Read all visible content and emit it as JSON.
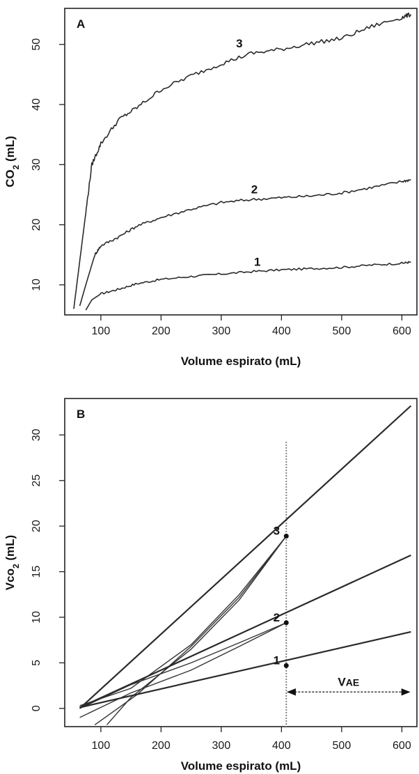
{
  "chart_data": [
    {
      "type": "line",
      "panel": "A",
      "xlabel": "Volume espirato (mL)",
      "ylabel": "CO",
      "ylabel_sub": "2",
      "ylabel_unit": " (mL)",
      "xlim": [
        40,
        625
      ],
      "ylim": [
        5,
        56
      ],
      "xticks": [
        100,
        200,
        300,
        400,
        500,
        600
      ],
      "yticks": [
        10,
        20,
        30,
        40,
        50
      ],
      "grid": false,
      "series": [
        {
          "label": "1",
          "x": [
            75,
            85,
            100,
            130,
            160,
            200,
            250,
            300,
            350,
            400,
            450,
            500,
            550,
            600,
            615
          ],
          "y": [
            5.8,
            7.5,
            8.5,
            9.3,
            10.2,
            10.9,
            11.4,
            11.8,
            12.2,
            12.5,
            12.7,
            12.9,
            13.3,
            13.6,
            13.8
          ]
        },
        {
          "label": "2",
          "x": [
            65,
            75,
            90,
            100,
            130,
            160,
            200,
            250,
            300,
            350,
            400,
            450,
            500,
            550,
            600,
            615
          ],
          "y": [
            6.5,
            10,
            15,
            16.5,
            18,
            19.8,
            21.2,
            22.6,
            23.7,
            24.2,
            24.5,
            24.8,
            25.3,
            26.2,
            27.2,
            27.5
          ]
        },
        {
          "label": "3",
          "x": [
            55,
            65,
            75,
            85,
            100,
            130,
            160,
            200,
            250,
            300,
            350,
            400,
            450,
            500,
            550,
            600,
            615
          ],
          "y": [
            6,
            14,
            22,
            30,
            33.5,
            37.5,
            39.5,
            42.5,
            44.8,
            46.8,
            48.5,
            49.2,
            50.2,
            51,
            53,
            54.5,
            55
          ]
        }
      ],
      "curve_labels": [
        {
          "text": "1",
          "x": 360,
          "y": 13.2
        },
        {
          "text": "2",
          "x": 355,
          "y": 25.2
        },
        {
          "text": "3",
          "x": 330,
          "y": 49.5
        }
      ]
    },
    {
      "type": "line",
      "panel": "B",
      "xlabel": "Volume espirato (mL)",
      "ylabel": "Vco",
      "ylabel_sub": "2",
      "ylabel_unit": " (mL)",
      "xlim": [
        40,
        625
      ],
      "ylim": [
        -2,
        34
      ],
      "xticks": [
        100,
        200,
        300,
        400,
        500,
        600
      ],
      "yticks": [
        0,
        5,
        10,
        15,
        20,
        25,
        30
      ],
      "grid": false,
      "series": [
        {
          "label": "1",
          "x": [
            65,
            615
          ],
          "y": [
            0.1,
            8.4
          ]
        },
        {
          "label": "2",
          "x": [
            65,
            615
          ],
          "y": [
            0.1,
            16.8
          ]
        },
        {
          "label": "3",
          "x": [
            65,
            615
          ],
          "y": [
            0.0,
            33.2
          ]
        }
      ],
      "extra_lines": [
        {
          "x": [
            65,
            150,
            250,
            330,
            408
          ],
          "y": [
            0.3,
            2.2,
            7.0,
            12.5,
            18.9
          ]
        },
        {
          "x": [
            90,
            160,
            250,
            330,
            408
          ],
          "y": [
            -1.8,
            1.5,
            6.8,
            12.2,
            18.9
          ]
        },
        {
          "x": [
            110,
            150,
            250,
            330,
            408
          ],
          "y": [
            -1.8,
            1.2,
            6.5,
            11.9,
            18.9
          ]
        },
        {
          "x": [
            65,
            150,
            250,
            330,
            408
          ],
          "y": [
            0.0,
            2.6,
            5.0,
            7.2,
            9.4
          ]
        },
        {
          "x": [
            65,
            150,
            250,
            330,
            408
          ],
          "y": [
            -1.0,
            1.7,
            4.2,
            6.8,
            9.4
          ]
        }
      ],
      "vline_x": 408,
      "points": [
        {
          "label": "1",
          "x": 408,
          "y": 4.7
        },
        {
          "label": "2",
          "x": 408,
          "y": 9.4
        },
        {
          "label": "3",
          "x": 408,
          "y": 18.9
        }
      ],
      "arrow": {
        "label": "V",
        "label_sub": "AE",
        "x1": 408,
        "x2": 615,
        "y": 1.8
      }
    }
  ]
}
